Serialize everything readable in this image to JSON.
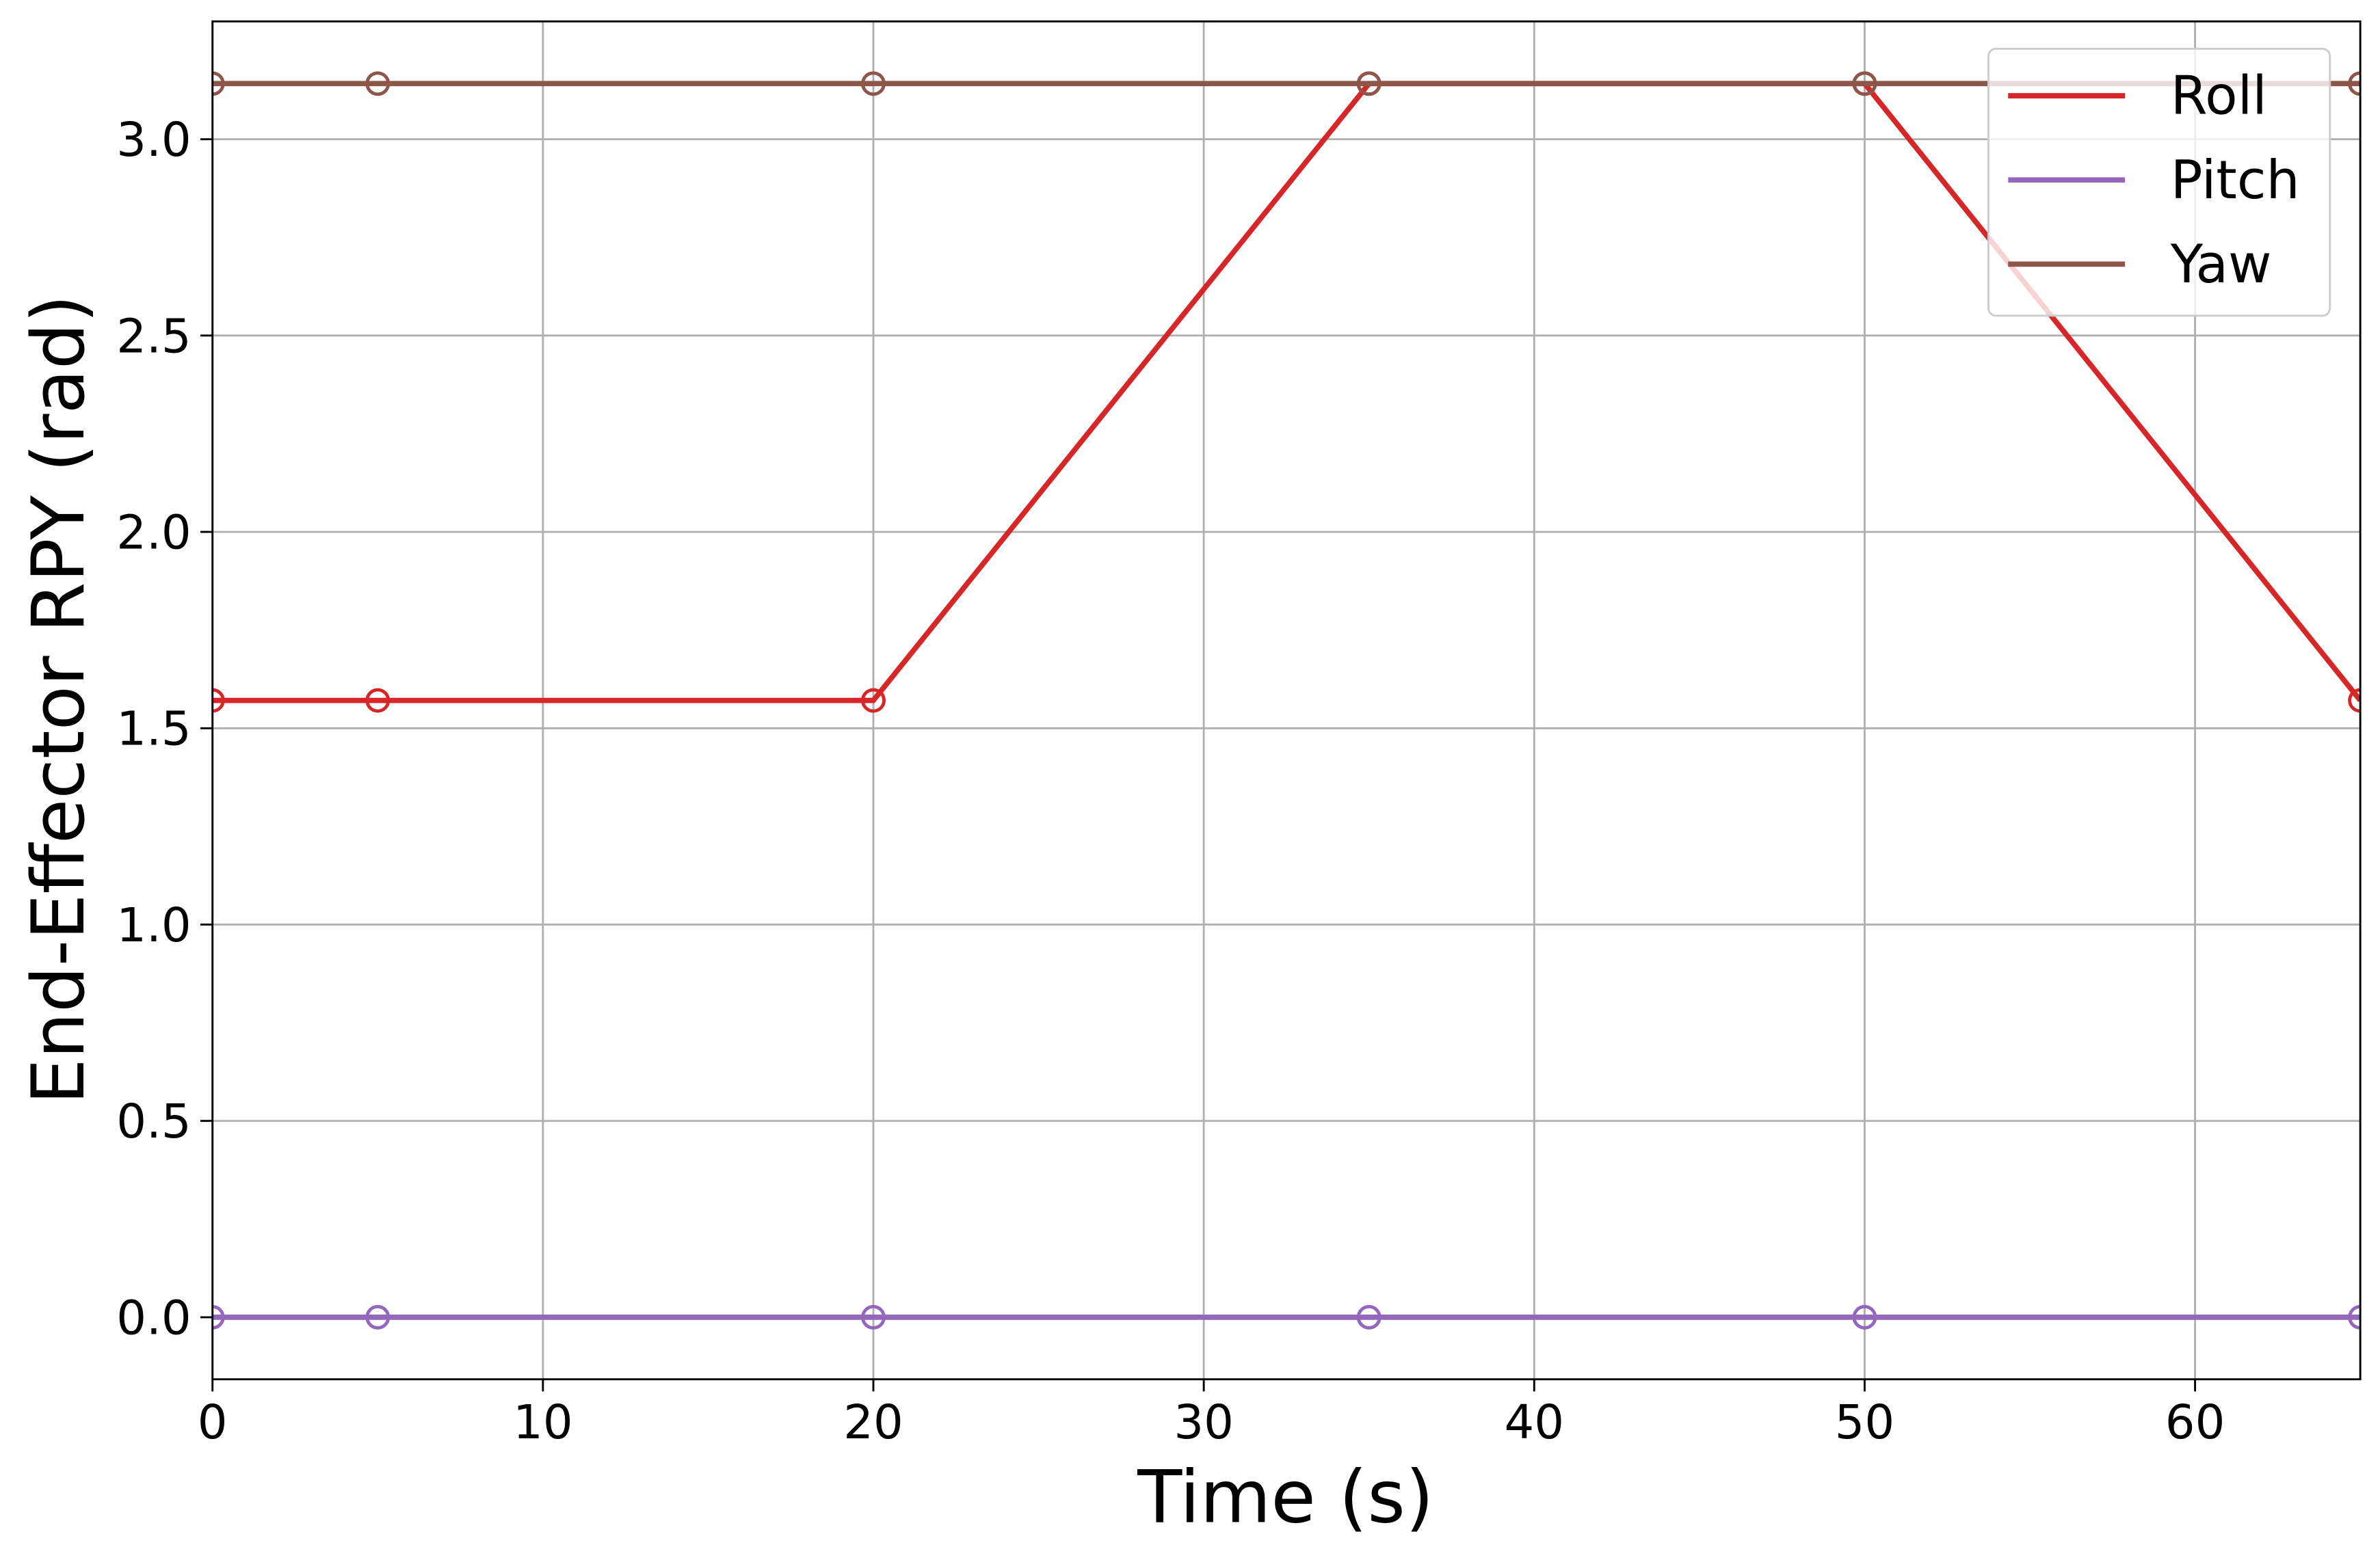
{
  "chart_data": {
    "type": "line",
    "x_label": "Time (s)",
    "y_label": "End-Effector RPY (rad)",
    "x": [
      0,
      5,
      20,
      35,
      50,
      65
    ],
    "series": [
      {
        "name": "Roll",
        "color": "#d62728",
        "values": [
          1.5708,
          1.5708,
          1.5708,
          3.1416,
          3.1416,
          1.5708
        ]
      },
      {
        "name": "Pitch",
        "color": "#9467bd",
        "values": [
          0,
          0,
          0,
          0,
          0,
          0
        ]
      },
      {
        "name": "Yaw",
        "color": "#8c564b",
        "values": [
          3.1416,
          3.1416,
          3.1416,
          3.1416,
          3.1416,
          3.1416
        ]
      }
    ],
    "xlim": [
      0,
      65
    ],
    "ylim": [
      -0.158,
      3.3
    ],
    "xticks": [
      0,
      10,
      20,
      30,
      40,
      50,
      60
    ],
    "yticks": [
      {
        "value": 0,
        "label": "0.0"
      },
      0.5,
      {
        "value": 1,
        "label": "1.0"
      },
      1.5,
      {
        "value": 2,
        "label": "2.0"
      },
      2.5,
      {
        "value": 3,
        "label": "3.0"
      }
    ],
    "grid": true,
    "legend": "upper right",
    "markers": true
  }
}
